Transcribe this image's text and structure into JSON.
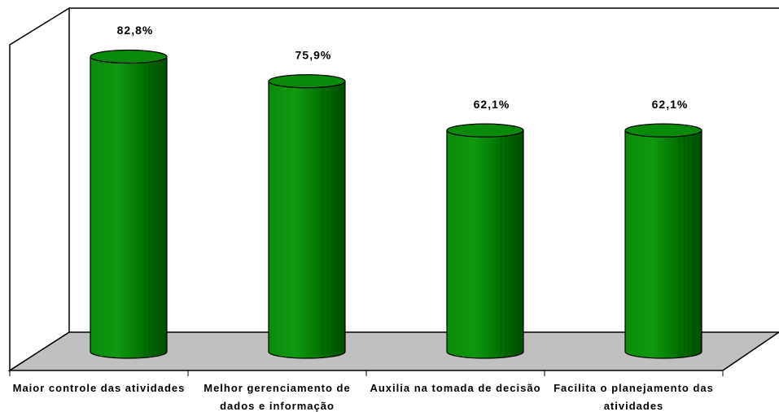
{
  "chart_data": {
    "type": "bar3d",
    "categories": [
      "Maior controle das atividades",
      "Melhor gerenciamento de dados e informação",
      "Auxilia na tomada de decisão",
      "Facilita o planejamento das atividades"
    ],
    "values": [
      82.8,
      75.9,
      62.1,
      62.1
    ],
    "value_labels": [
      "82,8%",
      "75,9%",
      "62,1%",
      "62,1%"
    ],
    "color": "#008000",
    "ylim": [
      0,
      90
    ]
  }
}
